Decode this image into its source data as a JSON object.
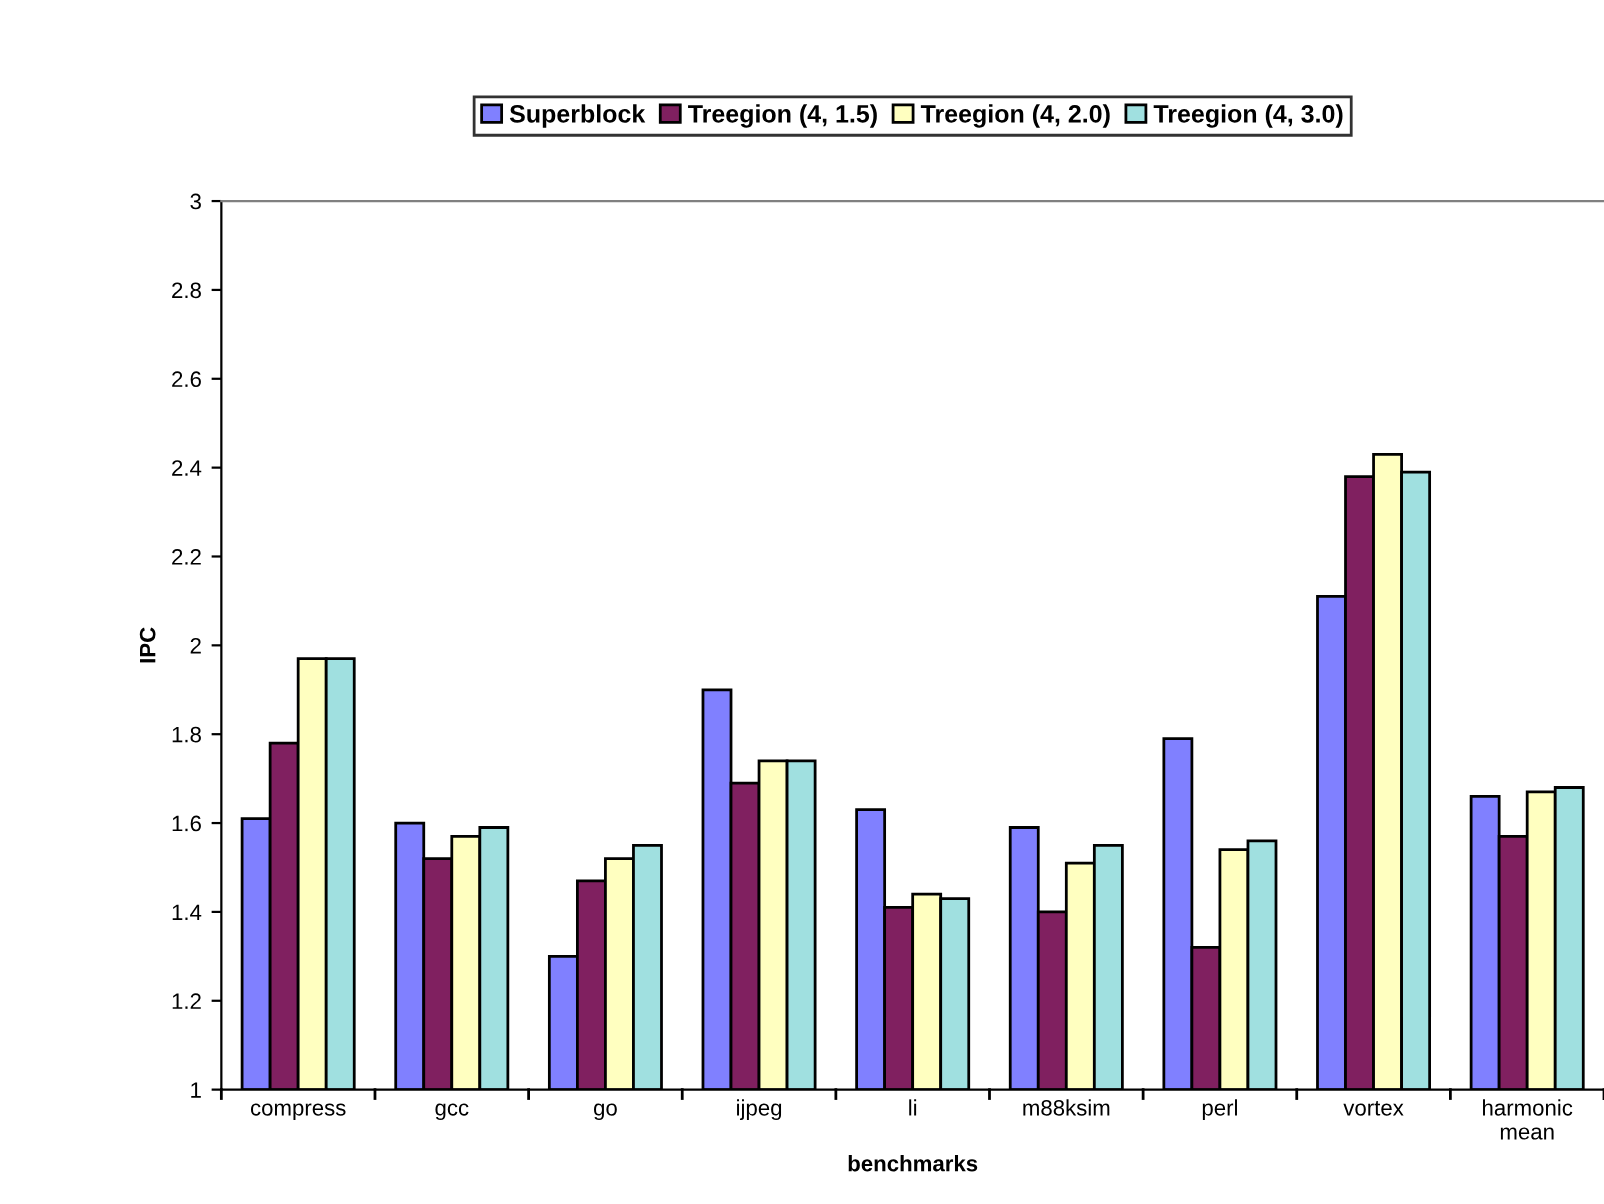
{
  "chart_data": {
    "type": "bar",
    "xlabel": "benchmarks",
    "ylabel": "IPC",
    "categories": [
      "compress",
      "gcc",
      "go",
      "ijpeg",
      "li",
      "m88ksim",
      "perl",
      "vortex",
      "harmonic\nmean"
    ],
    "series": [
      {
        "name": "Superblock",
        "color": "#8080ff",
        "values": [
          1.61,
          1.6,
          1.3,
          1.9,
          1.63,
          1.59,
          1.79,
          2.11,
          1.66
        ]
      },
      {
        "name": "Treegion (4, 1.5)",
        "color": "#802060",
        "values": [
          1.78,
          1.52,
          1.47,
          1.69,
          1.41,
          1.4,
          1.32,
          2.38,
          1.57
        ]
      },
      {
        "name": "Treegion (4, 2.0)",
        "color": "#ffffc0",
        "values": [
          1.97,
          1.57,
          1.52,
          1.74,
          1.44,
          1.51,
          1.54,
          2.43,
          1.67
        ]
      },
      {
        "name": "Treegion (4, 3.0)",
        "color": "#a0e0e0",
        "values": [
          1.97,
          1.59,
          1.55,
          1.74,
          1.43,
          1.55,
          1.56,
          2.39,
          1.68
        ]
      }
    ],
    "ylim": [
      1,
      3
    ],
    "yticks": [
      1,
      1.2,
      1.4,
      1.6,
      1.8,
      2,
      2.2,
      2.4,
      2.6,
      2.8,
      3
    ],
    "grid": false,
    "legend": "top"
  }
}
